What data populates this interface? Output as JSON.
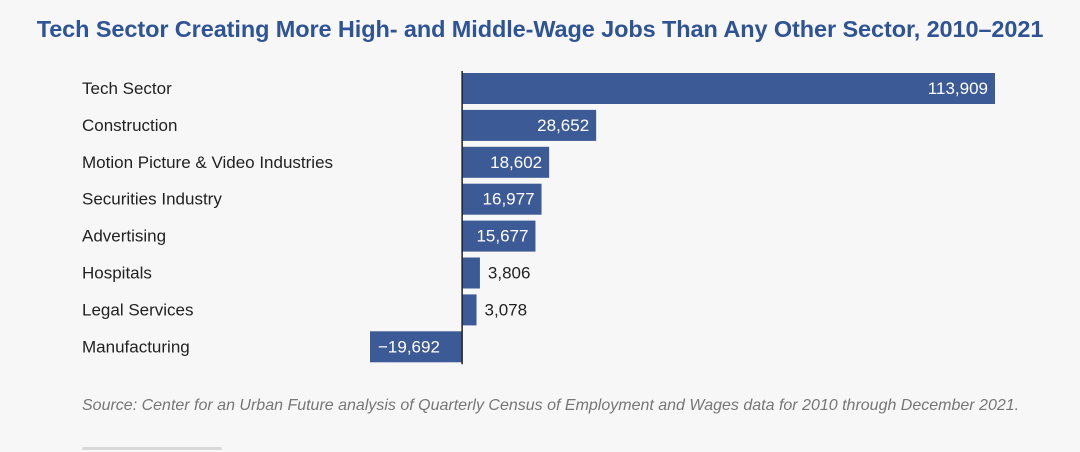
{
  "chart_data": {
    "type": "bar",
    "orientation": "horizontal",
    "title": "Tech Sector Creating More High- and Middle-Wage Jobs Than Any Other Sector, 2010–2021",
    "categories": [
      "Tech Sector",
      "Construction",
      "Motion Picture & Video Industries",
      "Securities Industry",
      "Advertising",
      "Hospitals",
      "Legal Services",
      "Manufacturing"
    ],
    "values": [
      113909,
      28652,
      18602,
      16977,
      15677,
      3806,
      3078,
      -19692
    ],
    "value_labels": [
      "113,909",
      "28,652",
      "18,602",
      "16,977",
      "15,677",
      "3,806",
      "3,078",
      "−19,692"
    ],
    "xlim": [
      -19692,
      113909
    ],
    "bar_color": "#3c5a95",
    "label_inside_color": "#ffffff",
    "label_outside_color": "#222222",
    "grid": false,
    "legend": "none"
  },
  "source_note": "Source: Center for an Urban Future analysis of Quarterly Census of Employment and Wages data for 2010 through December 2021."
}
